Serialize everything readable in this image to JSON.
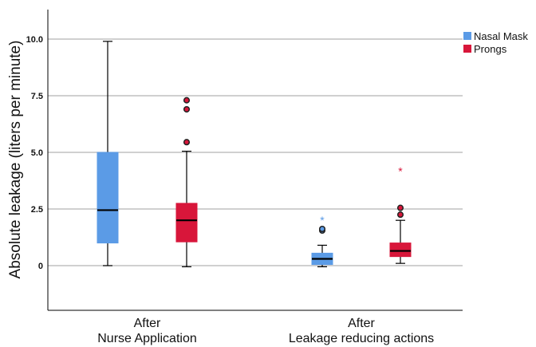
{
  "chart_data": {
    "type": "boxplot",
    "ylabel": "Absolute leakage (liters per minute)",
    "xlabel": "",
    "ylim": [
      -2,
      11
    ],
    "yticks": [
      0,
      2.5,
      5.0,
      7.5,
      10.0
    ],
    "ytick_labels": [
      "0",
      "2.5",
      "5.0",
      "7.5",
      "10.0"
    ],
    "grid": "horizontal",
    "legend_position": "top-right",
    "categories": [
      {
        "line1": "After",
        "line2": "Nurse Application"
      },
      {
        "line1": "After",
        "line2": "Leakage reducing actions"
      }
    ],
    "series": [
      {
        "name": "Nasal Mask",
        "color": "#5b9be6",
        "boxes": [
          {
            "min": 0.0,
            "q1": 1.0,
            "median": 2.45,
            "q3": 5.0,
            "max": 9.9,
            "outliers": [],
            "extremes": []
          },
          {
            "min": -0.05,
            "q1": 0.05,
            "median": 0.3,
            "q3": 0.55,
            "max": 0.9,
            "outliers": [
              1.55,
              1.62
            ],
            "extremes": [
              2.05
            ]
          }
        ]
      },
      {
        "name": "Prongs",
        "color": "#d8163a",
        "boxes": [
          {
            "min": -0.05,
            "q1": 1.05,
            "median": 2.0,
            "q3": 2.75,
            "max": 5.05,
            "outliers": [
              5.45,
              6.9,
              7.3
            ],
            "extremes": []
          },
          {
            "min": 0.1,
            "q1": 0.4,
            "median": 0.65,
            "q3": 1.0,
            "max": 2.0,
            "outliers": [
              2.25,
              2.55
            ],
            "extremes": [
              4.2
            ]
          }
        ]
      }
    ]
  }
}
